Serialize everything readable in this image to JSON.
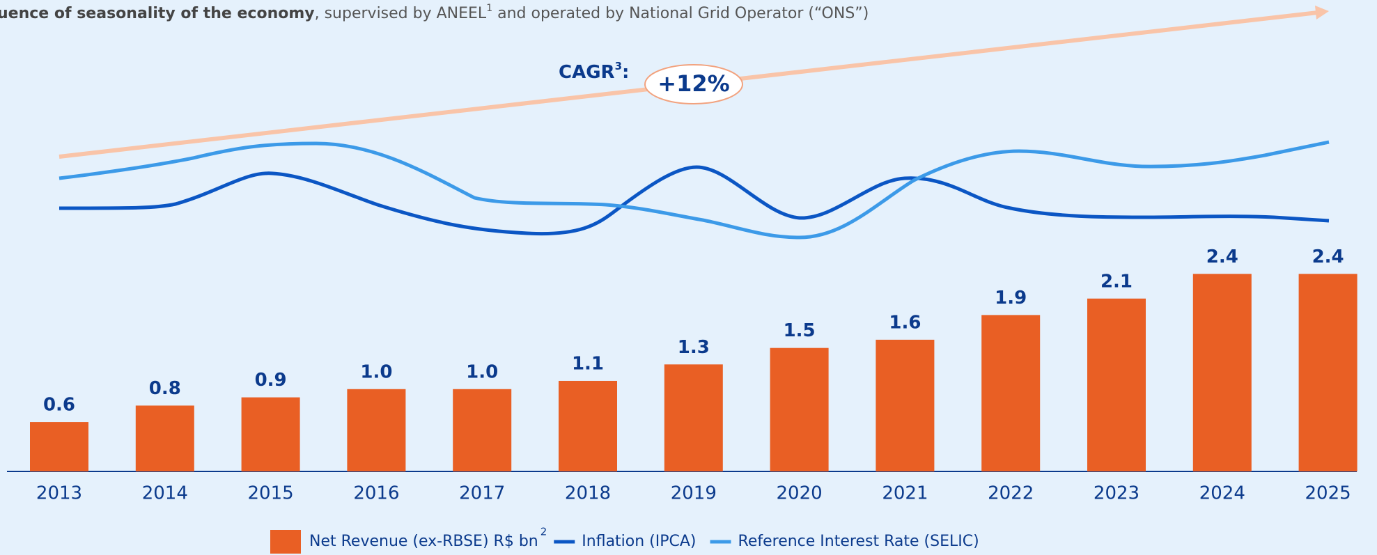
{
  "header": {
    "bold": "uence of seasonality of the economy",
    "text": ", supervised by ANEEL",
    "footnote": "1",
    "text_end": " and operated by National Grid Operator (“ONS”)"
  },
  "chart_data": {
    "type": "bar",
    "categories": [
      "2013",
      "2014",
      "2015",
      "2016",
      "2017",
      "2018",
      "2019",
      "2020",
      "2021",
      "2022",
      "2023",
      "2024",
      "2025"
    ],
    "series": [
      {
        "name": "Net Revenue (ex-RBSE) R$ bn",
        "footnote": "2",
        "color": "#e95f24",
        "values": [
          0.6,
          0.8,
          0.9,
          1.0,
          1.0,
          1.1,
          1.3,
          1.5,
          1.6,
          1.9,
          2.1,
          2.4,
          2.4
        ],
        "value_labels": [
          "0.6",
          "0.8",
          "0.9",
          "1.0",
          "1.0",
          "1.1",
          "1.3",
          "1.5",
          "1.6",
          "1.9",
          "2.1",
          "2.4",
          "2.4"
        ]
      },
      {
        "name": "Inflation (IPCA)",
        "color": "#0b56c4"
      },
      {
        "name": "Reference Interest Rate (SELIC)",
        "color": "#3c9ae8"
      }
    ],
    "ylim": [
      0,
      2.8
    ],
    "annotation": {
      "label": "CAGR",
      "footnote": "3",
      "colon": ":",
      "value": "+12%"
    }
  }
}
